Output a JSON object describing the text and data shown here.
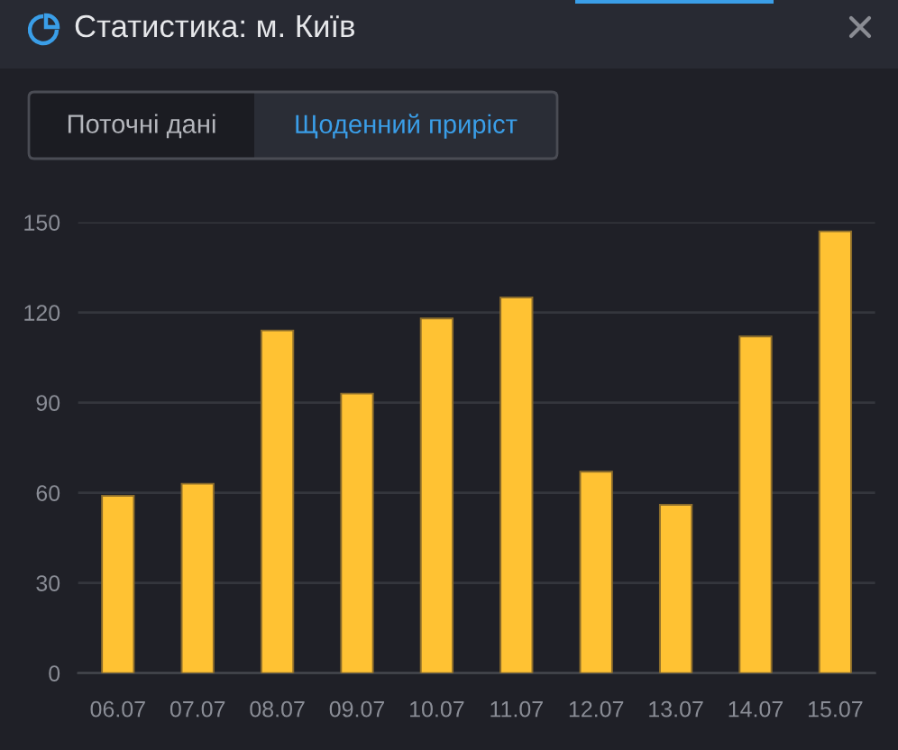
{
  "chart_data": {
    "type": "bar",
    "title": "Статистика: м. Київ",
    "annotations": [
      "Поточні дані",
      "Щоденний приріст"
    ],
    "categories": [
      "06.07",
      "07.07",
      "08.07",
      "09.07",
      "10.07",
      "11.07",
      "12.07",
      "13.07",
      "14.07",
      "15.07"
    ],
    "values": [
      59,
      63,
      114,
      93,
      118,
      125,
      67,
      56,
      112,
      147
    ],
    "color": "#ffc233",
    "ylim": [
      0,
      150
    ],
    "yticks": [
      0,
      30,
      60,
      90,
      120,
      150
    ],
    "grid": "y"
  }
}
